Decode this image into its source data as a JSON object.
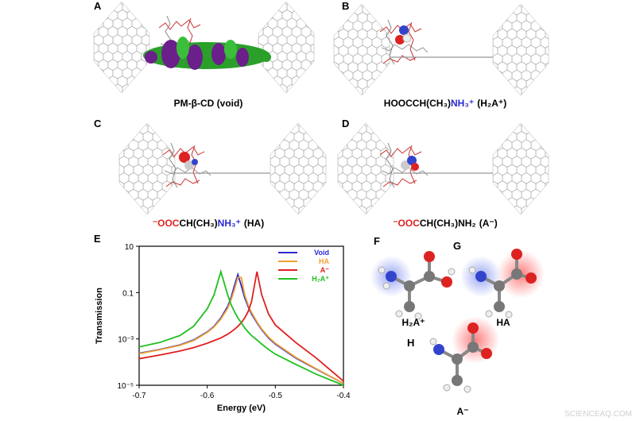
{
  "panels": [
    {
      "label": "A",
      "caption": [
        "PM-β-CD (void)"
      ]
    },
    {
      "label": "B",
      "caption": [
        "HOOCCH(CH₃)",
        "NH₃⁺",
        "(H₂A⁺)"
      ]
    },
    {
      "label": "C",
      "caption": [
        "⁻OOC",
        "CH(CH₃)",
        "NH₃⁺",
        "(HA)"
      ]
    },
    {
      "label": "D",
      "caption": [
        "⁻OOC",
        "CH(CH₃)NH₂",
        "(A⁻)"
      ]
    }
  ],
  "chart_panel_label": "E",
  "chart_data": {
    "type": "line",
    "xlabel": "Energy (eV)",
    "ylabel": "Transmission",
    "xlim": [
      -0.7,
      -0.4
    ],
    "xticks": [
      -0.7,
      -0.6,
      -0.5,
      -0.4
    ],
    "ylim": [
      1e-05,
      10
    ],
    "yticks": [
      10,
      0.1,
      {
        "value": 0.001,
        "label": "10⁻³"
      },
      {
        "value": 1e-05,
        "label": "10⁻⁵"
      }
    ],
    "log_y": true,
    "legend": "upper right",
    "x": [
      -0.7,
      -0.67,
      -0.64,
      -0.62,
      -0.6,
      -0.59,
      -0.58,
      -0.57,
      -0.565,
      -0.56,
      -0.555,
      -0.55,
      -0.545,
      -0.54,
      -0.535,
      -0.527,
      -0.52,
      -0.51,
      -0.5,
      -0.47,
      -0.44,
      -0.4
    ],
    "series": [
      {
        "name": "Void",
        "color": "#2a2ad0",
        "values": [
          0.00024,
          0.00035,
          0.00055,
          0.0009,
          0.002,
          0.0035,
          0.008,
          0.025,
          0.06,
          0.2,
          0.6,
          0.2,
          0.06,
          0.025,
          0.012,
          0.005,
          0.0025,
          0.0011,
          0.0006,
          0.00015,
          5e-05,
          1.2e-05
        ]
      },
      {
        "name": "HA",
        "color": "#f0a030",
        "values": [
          0.00023,
          0.00034,
          0.00053,
          0.00085,
          0.0019,
          0.0033,
          0.0072,
          0.021,
          0.048,
          0.14,
          0.45,
          0.45,
          0.08,
          0.03,
          0.014,
          0.0055,
          0.0027,
          0.0012,
          0.00065,
          0.00016,
          5.2e-05,
          1.2e-05
        ]
      },
      {
        "name": "A⁻",
        "color": "#e02020",
        "values": [
          0.00014,
          0.0002,
          0.0003,
          0.00042,
          0.00065,
          0.00085,
          0.0011,
          0.0016,
          0.002,
          0.0026,
          0.0035,
          0.005,
          0.008,
          0.015,
          0.04,
          0.8,
          0.08,
          0.012,
          0.004,
          0.0007,
          0.00015,
          1.5e-05
        ]
      },
      {
        "name": "H₂A⁺",
        "color": "#20c020",
        "values": [
          0.00045,
          0.0007,
          0.0014,
          0.0035,
          0.02,
          0.08,
          0.8,
          0.08,
          0.03,
          0.015,
          0.008,
          0.005,
          0.003,
          0.002,
          0.0014,
          0.0009,
          0.0006,
          0.00035,
          0.00022,
          8e-05,
          3e-05,
          1e-05
        ]
      }
    ]
  },
  "molecules": [
    {
      "label": "F",
      "name": "H₂A⁺"
    },
    {
      "label": "G",
      "name": "HA"
    },
    {
      "label": "H",
      "name": "A⁻"
    }
  ],
  "watermark": "SCIENCEAQ.COM"
}
